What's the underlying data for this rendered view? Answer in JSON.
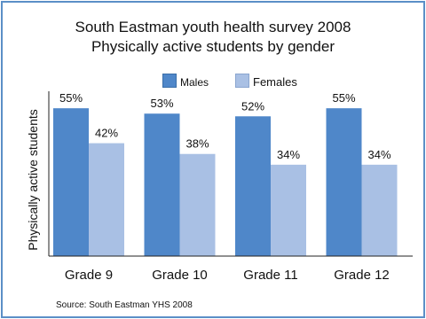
{
  "chart_data": {
    "type": "bar",
    "title": "South Eastman youth health survey 2008",
    "subtitle": "Physically active students by gender",
    "xlabel": "",
    "ylabel": "Physically active students",
    "ylim": [
      0,
      60
    ],
    "grid": false,
    "legend_position": "top-center",
    "categories": [
      "Grade 9",
      "Grade 10",
      "Grade 11",
      "Grade 12"
    ],
    "series": [
      {
        "name": "Males",
        "color": "#4f87c9",
        "values": [
          55,
          53,
          52,
          55
        ],
        "labels": [
          "55%",
          "53%",
          "52%",
          "55%"
        ]
      },
      {
        "name": "Females",
        "color": "#a9c0e4",
        "values": [
          42,
          38,
          34,
          34
        ],
        "labels": [
          "42%",
          "38%",
          "34%",
          "34%"
        ]
      }
    ],
    "source": "Source:  South Eastman YHS 2008"
  },
  "colors": {
    "frame_border": "#5b8fc7",
    "axis": "#222222"
  }
}
